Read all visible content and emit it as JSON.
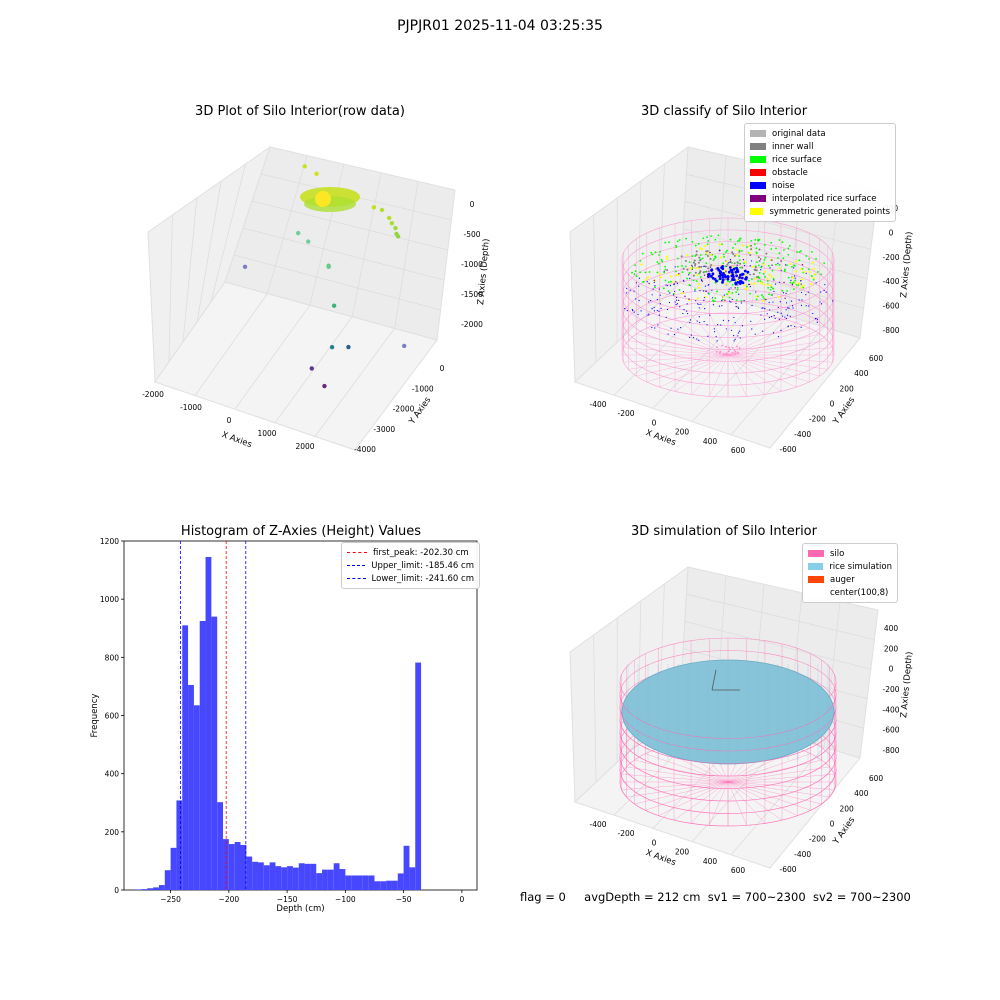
{
  "suptitle": "PJPJR01 2025-11-04 03:25:35",
  "footer": {
    "flag": "flag = 0",
    "avgDepth": "avgDepth = 212 cm",
    "sv1": "sv1 = 700~2300",
    "sv2": "sv2 = 700~2300"
  },
  "chart_data": [
    {
      "type": "scatter",
      "title": "3D Plot of Silo Interior(row data)",
      "xlabel": "X Axies",
      "ylabel": "Y Axies",
      "zlabel": "Z Axies (Depth)",
      "x_ticks": [
        "-2000",
        "-1000",
        "0",
        "1000",
        "2000"
      ],
      "y_ticks": [
        "0",
        "-1000",
        "-2000",
        "-3000",
        "-4000"
      ],
      "z_ticks": [
        "0",
        "-500",
        "-1000",
        "-1500",
        "-2000"
      ],
      "xlim": [
        -2300,
        2600
      ],
      "ylim": [
        -4200,
        700
      ],
      "zlim": [
        -2300,
        200
      ],
      "points": [
        {
          "x": -1900,
          "y": 500,
          "z": -2000,
          "color": "#7b7fc0"
        },
        {
          "x": -200,
          "y": -300,
          "z": -900,
          "color": "#6fcf97"
        },
        {
          "x": -500,
          "y": -100,
          "z": -900,
          "color": "#6fcf97"
        },
        {
          "x": 300,
          "y": -400,
          "z": -1150,
          "color": "#66cc88"
        },
        {
          "x": 300,
          "y": -400,
          "z": -1170,
          "color": "#66cc88"
        },
        {
          "x": 500,
          "y": -600,
          "z": -1700,
          "color": "#3bb37c"
        },
        {
          "x": 800,
          "y": -1500,
          "z": -2000,
          "color": "#277f8e"
        },
        {
          "x": 1100,
          "y": -1300,
          "z": -2000,
          "color": "#2c5f8a"
        },
        {
          "x": 600,
          "y": -2200,
          "z": -2150,
          "color": "#5a3a8a"
        },
        {
          "x": 1100,
          "y": -2700,
          "z": -2150,
          "color": "#6a2a7a"
        },
        {
          "x": 2100,
          "y": -600,
          "z": -2000,
          "color": "#7b7fc0"
        },
        {
          "x": 1200,
          "y": 400,
          "z": -300,
          "color": "#b5de2b"
        },
        {
          "x": 1400,
          "y": 300,
          "z": -350,
          "color": "#b5de2b"
        },
        {
          "x": 1500,
          "y": 200,
          "z": -380,
          "color": "#a8db34"
        },
        {
          "x": 1600,
          "y": 150,
          "z": -420,
          "color": "#a0da39"
        },
        {
          "x": 1650,
          "y": 80,
          "z": -480,
          "color": "#90d743"
        },
        {
          "x": 1700,
          "y": 50,
          "z": -500,
          "color": "#90d743"
        },
        {
          "x": 1000,
          "y": 450,
          "z": -320,
          "color": "#c2df23"
        },
        {
          "x": -600,
          "y": 600,
          "z": -60,
          "color": "#cae11f"
        },
        {
          "x": -300,
          "y": 500,
          "z": -80,
          "color": "#d0e11c"
        }
      ],
      "surface_cluster": {
        "center_x": 0,
        "center_y": 0,
        "z": -100,
        "color": "#c8e020",
        "highlight": "#fde725"
      }
    },
    {
      "type": "scatter",
      "title": "3D classify of Silo Interior",
      "xlabel": "X Axies",
      "ylabel": "Y Axies",
      "zlabel": "Z Axies (Depth)",
      "x_ticks": [
        "-400",
        "-200",
        "0",
        "200",
        "400",
        "600"
      ],
      "y_ticks": [
        "600",
        "400",
        "200",
        "0",
        "-200",
        "-400",
        "-600"
      ],
      "z_ticks": [
        "200",
        "0",
        "-200",
        "-400",
        "-600",
        "-800"
      ],
      "legend": [
        {
          "label": "original data",
          "color": "#b3b3b3"
        },
        {
          "label": "inner wall",
          "color": "#808080"
        },
        {
          "label": "rice surface",
          "color": "#00ff00"
        },
        {
          "label": "obstacle",
          "color": "#ff0000"
        },
        {
          "label": "noise",
          "color": "#0000ff"
        },
        {
          "label": "interpolated rice surface",
          "color": "#800080"
        },
        {
          "label": "symmetric generated points",
          "color": "#ffff00"
        }
      ],
      "wire_color": "#ff88cc"
    },
    {
      "type": "bar",
      "title": "Histogram of Z-Axies (Height) Values",
      "xlabel": "Depth (cm)",
      "ylabel": "Frequency",
      "xlim": [
        -290,
        13
      ],
      "ylim": [
        0,
        1200
      ],
      "x_ticks": [
        -250,
        -200,
        -150,
        -100,
        -50,
        0
      ],
      "x_tick_labels": [
        "−250",
        "−200",
        "−150",
        "−100",
        "−50",
        "0"
      ],
      "y_ticks": [
        0,
        200,
        400,
        600,
        800,
        1000,
        1200
      ],
      "bin_width": 5,
      "bin_start": -280,
      "bar_color": "#4747ff",
      "values": [
        2,
        3,
        6,
        9,
        17,
        68,
        145,
        308,
        910,
        705,
        635,
        925,
        1145,
        940,
        302,
        175,
        158,
        165,
        155,
        115,
        97,
        95,
        85,
        95,
        82,
        78,
        82,
        77,
        92,
        90,
        90,
        58,
        70,
        70,
        92,
        72,
        50,
        50,
        50,
        50,
        50,
        30,
        30,
        32,
        32,
        57,
        152,
        78,
        782
      ],
      "vlines": [
        {
          "x": -202.3,
          "color": "#ff0000",
          "label": "first_peak: -202.30 cm"
        },
        {
          "x": -185.46,
          "color": "#0000ff",
          "label": "Upper_limit: -185.46 cm"
        },
        {
          "x": -241.6,
          "color": "#0000ff",
          "label": "Lower_limit: -241.60 cm"
        }
      ]
    },
    {
      "type": "scatter",
      "title": "3D simulation of Silo Interior",
      "xlabel": "X Axies",
      "ylabel": "Y Axies",
      "zlabel": "Z Axies (Depth)",
      "x_ticks": [
        "-400",
        "-200",
        "0",
        "200",
        "400",
        "600"
      ],
      "y_ticks": [
        "600",
        "400",
        "200",
        "0",
        "-200",
        "-400",
        "-600"
      ],
      "z_ticks": [
        "400",
        "200",
        "0",
        "-200",
        "-400",
        "-600",
        "-800"
      ],
      "legend": [
        {
          "label": "silo",
          "color": "#ff69b4"
        },
        {
          "label": "rice simulation",
          "color": "#87ceeb"
        },
        {
          "label": "auger",
          "color": "#ff4500"
        },
        {
          "label": "center(100,8)",
          "color": "#ffffff"
        }
      ],
      "wire_color": "#ff69b4",
      "surface_color": "#87c4d9"
    }
  ]
}
